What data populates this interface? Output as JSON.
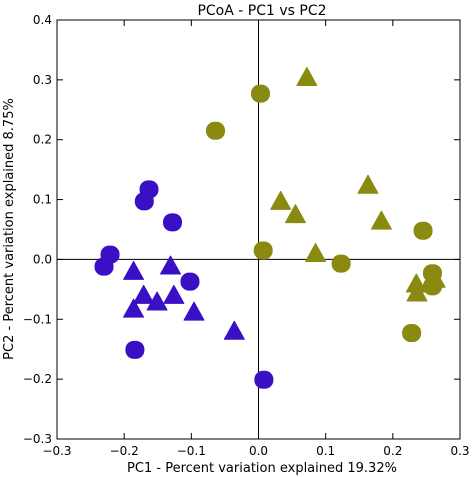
{
  "chart_data": {
    "type": "scatter",
    "title": "PCoA - PC1 vs PC2",
    "xlabel": "PC1 - Percent variation explained 19.32%",
    "ylabel": "PC2 - Percent variation explained 8.75%",
    "xlim": [
      -0.3,
      0.3
    ],
    "ylim": [
      -0.3,
      0.4
    ],
    "xticks": [
      "−0.3",
      "−0.2",
      "−0.1",
      "0.0",
      "0.1",
      "0.2",
      "0.3"
    ],
    "yticks": [
      "−0.3",
      "−0.2",
      "−0.1",
      "0.0",
      "0.1",
      "0.2",
      "0.3",
      "0.4"
    ],
    "xtick_values": [
      -0.3,
      -0.2,
      -0.1,
      0.0,
      0.1,
      0.2,
      0.3
    ],
    "ytick_values": [
      -0.3,
      -0.2,
      -0.1,
      0.0,
      0.1,
      0.2,
      0.3,
      0.4
    ],
    "origin_lines": true,
    "grid": false,
    "series": [
      {
        "marker": "circle",
        "color": "#3a10c4",
        "points": [
          [
            -0.163,
            0.117
          ],
          [
            -0.17,
            0.097
          ],
          [
            -0.128,
            0.062
          ],
          [
            -0.221,
            0.008
          ],
          [
            -0.23,
            -0.012
          ],
          [
            -0.102,
            -0.037
          ],
          [
            -0.184,
            -0.151
          ],
          [
            0.008,
            -0.201
          ]
        ]
      },
      {
        "marker": "triangle",
        "color": "#3a10c4",
        "points": [
          [
            -0.186,
            -0.022
          ],
          [
            -0.171,
            -0.062
          ],
          [
            -0.131,
            -0.013
          ],
          [
            -0.186,
            -0.085
          ],
          [
            -0.151,
            -0.073
          ],
          [
            -0.126,
            -0.062
          ],
          [
            -0.096,
            -0.09
          ],
          [
            -0.036,
            -0.122
          ]
        ]
      },
      {
        "marker": "circle",
        "color": "#8a8a10",
        "points": [
          [
            0.003,
            0.277
          ],
          [
            -0.064,
            0.215
          ],
          [
            0.007,
            0.015
          ],
          [
            0.123,
            -0.007
          ],
          [
            0.245,
            0.048
          ],
          [
            0.259,
            -0.023
          ],
          [
            0.259,
            -0.045
          ],
          [
            0.228,
            -0.123
          ]
        ]
      },
      {
        "marker": "triangle",
        "color": "#8a8a10",
        "points": [
          [
            0.072,
            0.302
          ],
          [
            0.163,
            0.122
          ],
          [
            0.033,
            0.095
          ],
          [
            0.055,
            0.073
          ],
          [
            0.183,
            0.062
          ],
          [
            0.085,
            0.008
          ],
          [
            0.235,
            -0.043
          ],
          [
            0.263,
            -0.035
          ],
          [
            0.236,
            -0.058
          ]
        ]
      }
    ]
  }
}
